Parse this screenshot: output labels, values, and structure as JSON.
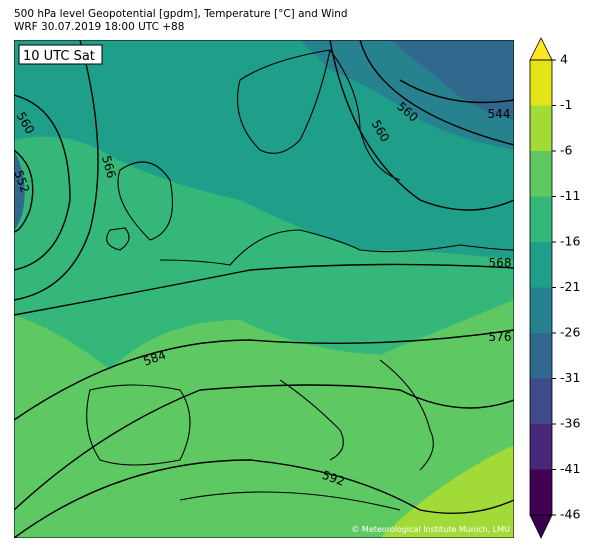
{
  "header": {
    "title": "500 hPa level Geopotential [gpdm], Temperature [°C] and Wind",
    "subtitle": "WRF 30.07.2019 18:00 UTC +88"
  },
  "map": {
    "time_label": "10 UTC Sat",
    "contour_labels": [
      "560",
      "552",
      "566",
      "560",
      "560",
      "544",
      "568",
      "576",
      "584",
      "592"
    ],
    "credit": "© Meteorological Institute Munich, LMU"
  },
  "colorbar": {
    "ticks": [
      4,
      -1,
      -6,
      -11,
      -16,
      -21,
      -26,
      -31,
      -36,
      -41,
      -46
    ],
    "colors": [
      "#e5e419",
      "#a2da37",
      "#5ec962",
      "#35b779",
      "#1f9e89",
      "#26828e",
      "#31688e",
      "#3e4a89",
      "#482878",
      "#440154"
    ],
    "extend_colors": [
      "#fde725",
      "#3b0150"
    ]
  }
}
